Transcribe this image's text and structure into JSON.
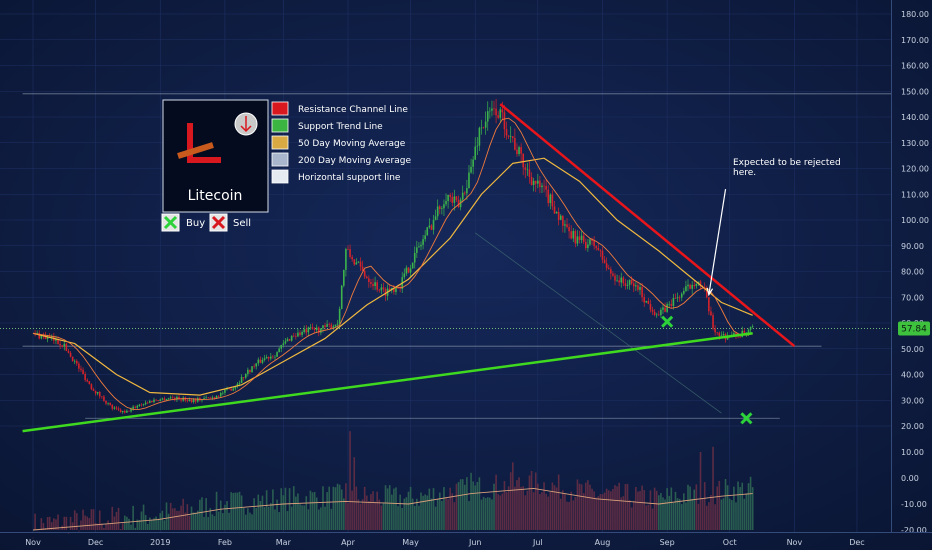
{
  "colors": {
    "background": "#0d1a3c",
    "up_candle": "#3cb44b",
    "down_candle": "#d8232a",
    "resistance": "#e8151b",
    "support": "#3fd91f",
    "ma50": "#f0b840",
    "ma20": "#f07a3c",
    "horizontal": "#93a2b8",
    "price_tag": "#3ec23e",
    "axis_text": "#c8d1e0"
  },
  "legend": {
    "logo_text": "Litecoin",
    "items": [
      {
        "label": "Resistance Channel Line",
        "color": "#d8181f"
      },
      {
        "label": "Support Trend Line",
        "color": "#3cb441"
      },
      {
        "label": "50 Day Moving Average",
        "color": "#d9aa44"
      },
      {
        "label": "200 Day Moving Average",
        "color": "#aab6cc"
      },
      {
        "label": "Horizontal support line",
        "color": "#e6ebf2"
      }
    ],
    "buy_label": "Buy",
    "sell_label": "Sell"
  },
  "annotation": {
    "lines": [
      "Expected to be rejected",
      "here."
    ]
  },
  "chart_data": {
    "type": "candlestick",
    "symbol": "Litecoin",
    "x_axis": {
      "ticks": [
        "Nov",
        "Dec",
        "2019",
        "Feb",
        "Mar",
        "Apr",
        "May",
        "Jun",
        "Jul",
        "Aug",
        "Sep",
        "Oct",
        "Nov",
        "Dec"
      ],
      "tick_days": [
        0,
        30,
        61,
        92,
        120,
        151,
        181,
        212,
        242,
        273,
        304,
        334,
        365,
        395
      ]
    },
    "price_axis": {
      "range": [
        15,
        185
      ],
      "ticks": [
        "180.00",
        "170.00",
        "160.00",
        "150.00",
        "140.00",
        "130.00",
        "120.00",
        "110.00",
        "100.00",
        "90.00",
        "80.00",
        "70.00",
        "60.00",
        "50.00",
        "40.00",
        "30.00",
        "20.00"
      ],
      "tick_values": [
        180,
        170,
        160,
        150,
        140,
        130,
        120,
        110,
        100,
        90,
        80,
        70,
        60,
        50,
        40,
        30,
        20
      ]
    },
    "volume_axis": {
      "range": [
        -22,
        14
      ],
      "ticks": [
        "10.00",
        "0.00",
        "-10.00",
        "-20.00"
      ],
      "tick_values": [
        10,
        0,
        -10,
        -20
      ]
    },
    "current_price": "57.84",
    "current_price_value": 57.84,
    "price_keypoints": [
      [
        0,
        56
      ],
      [
        8,
        54
      ],
      [
        14,
        52
      ],
      [
        20,
        45
      ],
      [
        28,
        35
      ],
      [
        38,
        27
      ],
      [
        44,
        25
      ],
      [
        50,
        28
      ],
      [
        58,
        30
      ],
      [
        66,
        31
      ],
      [
        76,
        30
      ],
      [
        86,
        31
      ],
      [
        96,
        35
      ],
      [
        104,
        42
      ],
      [
        110,
        46
      ],
      [
        116,
        48
      ],
      [
        124,
        55
      ],
      [
        132,
        57
      ],
      [
        140,
        58
      ],
      [
        146,
        60
      ],
      [
        150,
        88
      ],
      [
        154,
        84
      ],
      [
        160,
        78
      ],
      [
        168,
        72
      ],
      [
        176,
        75
      ],
      [
        184,
        88
      ],
      [
        190,
        97
      ],
      [
        198,
        110
      ],
      [
        204,
        105
      ],
      [
        210,
        120
      ],
      [
        214,
        135
      ],
      [
        218,
        140
      ],
      [
        222,
        143
      ],
      [
        226,
        138
      ],
      [
        230,
        131
      ],
      [
        236,
        120
      ],
      [
        242,
        113
      ],
      [
        246,
        110
      ],
      [
        250,
        105
      ],
      [
        256,
        95
      ],
      [
        262,
        92
      ],
      [
        270,
        90
      ],
      [
        276,
        80
      ],
      [
        282,
        76
      ],
      [
        290,
        74
      ],
      [
        294,
        68
      ],
      [
        300,
        63
      ],
      [
        306,
        68
      ],
      [
        312,
        72
      ],
      [
        318,
        77
      ],
      [
        322,
        72
      ],
      [
        326,
        58
      ],
      [
        330,
        55
      ],
      [
        336,
        55
      ],
      [
        342,
        56
      ],
      [
        345,
        57.8
      ]
    ],
    "ma50_keypoints": [
      [
        0,
        56
      ],
      [
        20,
        52
      ],
      [
        40,
        40
      ],
      [
        56,
        33
      ],
      [
        80,
        32
      ],
      [
        100,
        36
      ],
      [
        120,
        45
      ],
      [
        140,
        54
      ],
      [
        160,
        67
      ],
      [
        180,
        77
      ],
      [
        200,
        93
      ],
      [
        215,
        110
      ],
      [
        230,
        122
      ],
      [
        245,
        124
      ],
      [
        262,
        115
      ],
      [
        280,
        100
      ],
      [
        300,
        88
      ],
      [
        315,
        78
      ],
      [
        330,
        68
      ],
      [
        345,
        63
      ]
    ],
    "volume_ma_keypoints": [
      [
        0,
        -20
      ],
      [
        30,
        -18
      ],
      [
        60,
        -16
      ],
      [
        90,
        -12
      ],
      [
        120,
        -10
      ],
      [
        150,
        -9
      ],
      [
        180,
        -10
      ],
      [
        210,
        -6
      ],
      [
        240,
        -4
      ],
      [
        270,
        -8
      ],
      [
        300,
        -10
      ],
      [
        330,
        -7
      ],
      [
        345,
        -6
      ]
    ],
    "volume_spikes": [
      [
        150,
        -2
      ],
      [
        154,
        8
      ],
      [
        170,
        -4
      ],
      [
        210,
        2
      ],
      [
        230,
        6
      ],
      [
        320,
        10
      ],
      [
        326,
        12
      ],
      [
        152,
        18
      ]
    ],
    "resistance_line": {
      "from": [
        224,
        145
      ],
      "to": [
        365,
        51
      ]
    },
    "support_line": {
      "from": [
        -5,
        18
      ],
      "to": [
        345,
        56
      ]
    },
    "horizontal_lines": [
      {
        "y": 149,
        "from": -5,
        "to": 430
      },
      {
        "y": 51,
        "from": -5,
        "to": 378
      },
      {
        "y": 23,
        "from": 25,
        "to": 358
      }
    ],
    "current_price_line": {
      "y": 57.84
    },
    "diagonal_projection": {
      "from": [
        212,
        95
      ],
      "to": [
        330,
        25
      ]
    },
    "buy_markers": [
      {
        "day": 304,
        "price": 60.5
      },
      {
        "day": 342,
        "price": 23
      }
    ],
    "annotation_arrow": {
      "from": [
        332,
        112
      ],
      "to": [
        324,
        71
      ]
    }
  }
}
